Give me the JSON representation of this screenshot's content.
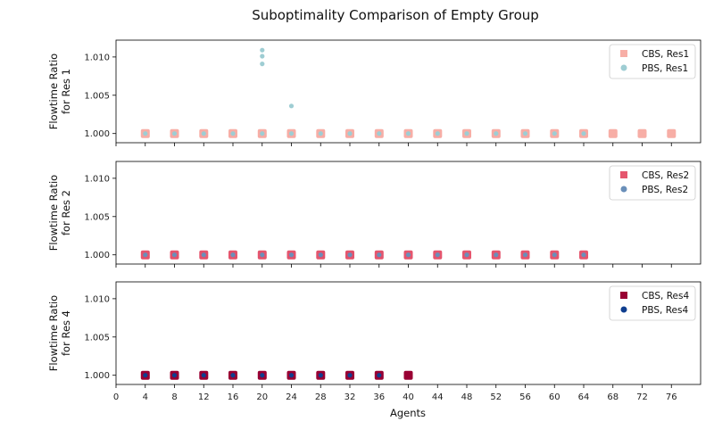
{
  "chart_data": {
    "type": "scatter",
    "title": "Suboptimality Comparison of Empty Group",
    "xlabel": "Agents",
    "xlim": [
      0,
      80
    ],
    "x_ticks": [
      0,
      4,
      8,
      12,
      16,
      20,
      24,
      28,
      32,
      36,
      40,
      44,
      48,
      52,
      56,
      60,
      64,
      68,
      72,
      76
    ],
    "y_ticks": [
      1.0,
      1.005,
      1.01
    ],
    "y_tick_labels": [
      "1.000",
      "1.005",
      "1.010"
    ],
    "ylim": [
      0.9988,
      1.0122
    ],
    "panels": [
      {
        "ylabel_lines": [
          "Flowtime Ratio",
          "for Res 1"
        ],
        "series": [
          {
            "name": "CBS, Res1",
            "marker": "square",
            "color": "#f7aea6",
            "points": [
              [
                4,
                1.0
              ],
              [
                8,
                1.0
              ],
              [
                12,
                1.0
              ],
              [
                16,
                1.0
              ],
              [
                20,
                1.0
              ],
              [
                24,
                1.0
              ],
              [
                28,
                1.0
              ],
              [
                32,
                1.0
              ],
              [
                36,
                1.0
              ],
              [
                40,
                1.0
              ],
              [
                44,
                1.0
              ],
              [
                48,
                1.0
              ],
              [
                52,
                1.0
              ],
              [
                56,
                1.0
              ],
              [
                60,
                1.0
              ],
              [
                64,
                1.0
              ],
              [
                68,
                1.0
              ],
              [
                72,
                1.0
              ],
              [
                76,
                1.0
              ]
            ]
          },
          {
            "name": "PBS, Res1",
            "marker": "circle",
            "color": "#9ecdd3",
            "points": [
              [
                4,
                1.0
              ],
              [
                8,
                1.0
              ],
              [
                12,
                1.0
              ],
              [
                16,
                1.0
              ],
              [
                20,
                1.0
              ],
              [
                20,
                1.0091
              ],
              [
                20,
                1.0101
              ],
              [
                20,
                1.0109
              ],
              [
                24,
                1.0
              ],
              [
                24,
                1.0036
              ],
              [
                28,
                1.0
              ],
              [
                32,
                1.0
              ],
              [
                36,
                1.0
              ],
              [
                40,
                1.0
              ],
              [
                44,
                1.0
              ],
              [
                48,
                1.0
              ],
              [
                52,
                1.0
              ],
              [
                56,
                1.0
              ],
              [
                60,
                1.0
              ],
              [
                64,
                1.0
              ]
            ]
          }
        ]
      },
      {
        "ylabel_lines": [
          "Flowtime Ratio",
          "for Res 2"
        ],
        "series": [
          {
            "name": "CBS, Res2",
            "marker": "square",
            "color": "#e5566e",
            "points": [
              [
                4,
                1.0
              ],
              [
                8,
                1.0
              ],
              [
                12,
                1.0
              ],
              [
                16,
                1.0
              ],
              [
                20,
                1.0
              ],
              [
                24,
                1.0
              ],
              [
                28,
                1.0
              ],
              [
                32,
                1.0
              ],
              [
                36,
                1.0
              ],
              [
                40,
                1.0
              ],
              [
                44,
                1.0
              ],
              [
                48,
                1.0
              ],
              [
                52,
                1.0
              ],
              [
                56,
                1.0
              ],
              [
                60,
                1.0
              ],
              [
                64,
                1.0
              ]
            ]
          },
          {
            "name": "PBS, Res2",
            "marker": "circle",
            "color": "#6a8fb9",
            "points": [
              [
                4,
                1.0
              ],
              [
                8,
                1.0
              ],
              [
                12,
                1.0
              ],
              [
                16,
                1.0
              ],
              [
                20,
                1.0
              ],
              [
                24,
                1.0
              ],
              [
                28,
                1.0
              ],
              [
                32,
                1.0
              ],
              [
                36,
                1.0
              ],
              [
                40,
                1.0
              ],
              [
                44,
                1.0
              ],
              [
                48,
                1.0
              ],
              [
                52,
                1.0
              ],
              [
                56,
                1.0
              ],
              [
                60,
                1.0
              ],
              [
                64,
                1.0
              ]
            ]
          }
        ]
      },
      {
        "ylabel_lines": [
          "Flowtime Ratio",
          "for Res 4"
        ],
        "series": [
          {
            "name": "CBS, Res4",
            "marker": "square",
            "color": "#990033",
            "points": [
              [
                4,
                1.0
              ],
              [
                8,
                1.0
              ],
              [
                12,
                1.0
              ],
              [
                16,
                1.0
              ],
              [
                20,
                1.0
              ],
              [
                24,
                1.0
              ],
              [
                28,
                1.0
              ],
              [
                32,
                1.0
              ],
              [
                36,
                1.0
              ],
              [
                40,
                1.0
              ]
            ]
          },
          {
            "name": "PBS, Res4",
            "marker": "circle",
            "color": "#0f3e8f",
            "points": [
              [
                4,
                1.0
              ],
              [
                8,
                1.0
              ],
              [
                12,
                1.0
              ],
              [
                16,
                1.0
              ],
              [
                20,
                1.0
              ],
              [
                24,
                1.0
              ],
              [
                28,
                1.0
              ],
              [
                32,
                1.0
              ],
              [
                36,
                1.0
              ]
            ]
          }
        ]
      }
    ]
  }
}
